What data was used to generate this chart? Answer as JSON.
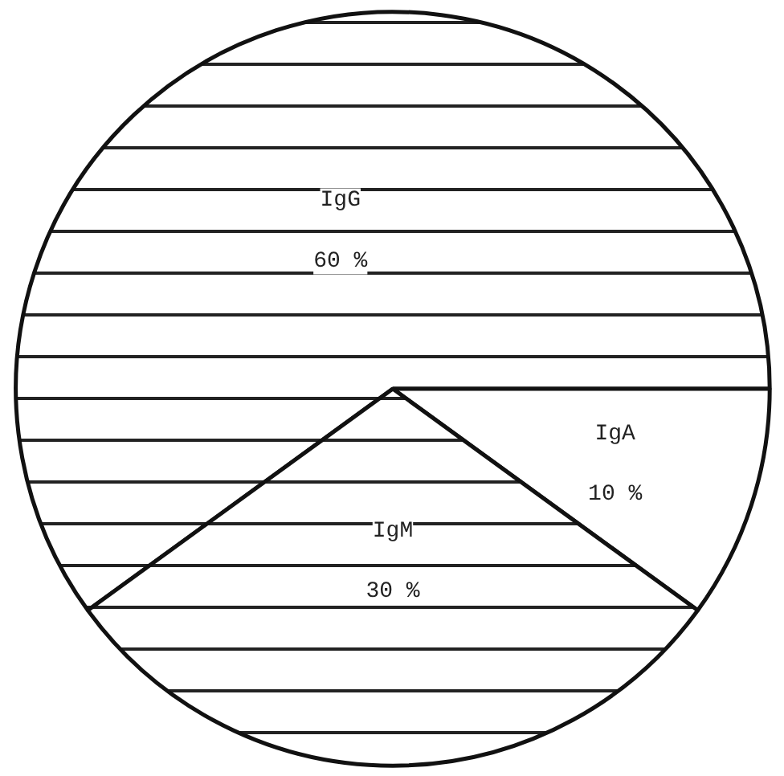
{
  "chart_data": {
    "type": "pie",
    "categories": [
      "IgG",
      "IgA",
      "IgM"
    ],
    "values": [
      60,
      10,
      30
    ],
    "colors": [
      "#ffffff",
      "#ffffff",
      "#ffffff"
    ],
    "value_labels": [
      "60 %",
      "10 %",
      "30 %"
    ]
  }
}
